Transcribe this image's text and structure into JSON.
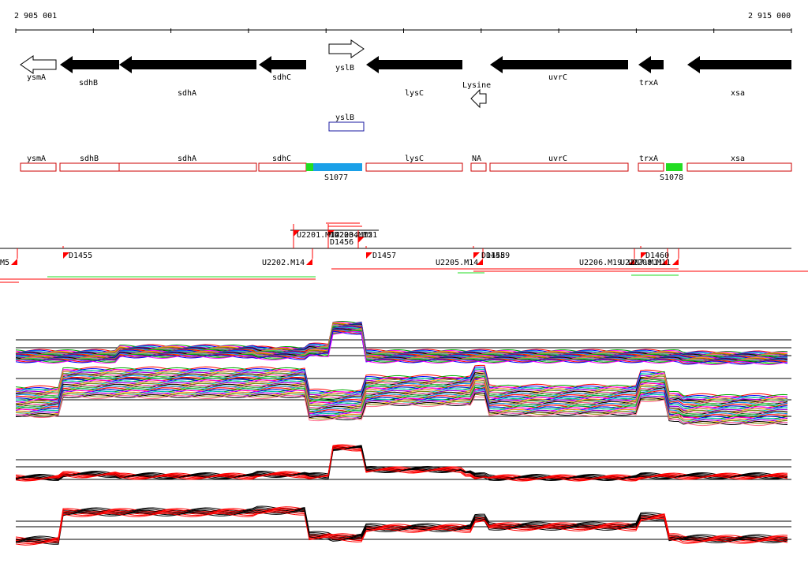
{
  "coords": {
    "start": "2 905 001",
    "end": "2 915 000"
  },
  "genes_forward": [
    {
      "label": "yslB"
    }
  ],
  "genes_reverse": [
    {
      "label": "ysmA",
      "filled": false
    },
    {
      "label": "sdhB",
      "filled": true
    },
    {
      "label": "sdhA",
      "filled": true
    },
    {
      "label": "sdhC",
      "filled": true
    },
    {
      "label": "lysC",
      "filled": true
    },
    {
      "label": "Lysine",
      "filled": false
    },
    {
      "label": "uvrC",
      "filled": true
    },
    {
      "label": "trxA",
      "filled": true
    },
    {
      "label": "xsa",
      "filled": true
    }
  ],
  "box_label": "yslB",
  "transcripts": [
    "ysmA",
    "sdhB",
    "sdhA",
    "sdhC",
    "lysC",
    "NA",
    "uvrC",
    "trxA",
    "xsa"
  ],
  "segments": [
    {
      "label": "S1077",
      "color": "#1aa0e8"
    },
    {
      "label": "S1078",
      "color": "#22dd22"
    }
  ],
  "upstream_labels": [
    "U2201.M14",
    "U2203.M15",
    "U2204.M21"
  ],
  "marker_labels": [
    "M5",
    "D1455",
    "D1456",
    "D1457",
    "D1458",
    "D1459",
    "D1460",
    "U2202.M14",
    "U2205.M14",
    "U2206.M19",
    "U2207.M11",
    "U2208.M11"
  ],
  "colors": {
    "forward": "#000000",
    "reverse": "#ff0000",
    "box": "#1a1aa0",
    "transcript": "#cc0000"
  }
}
